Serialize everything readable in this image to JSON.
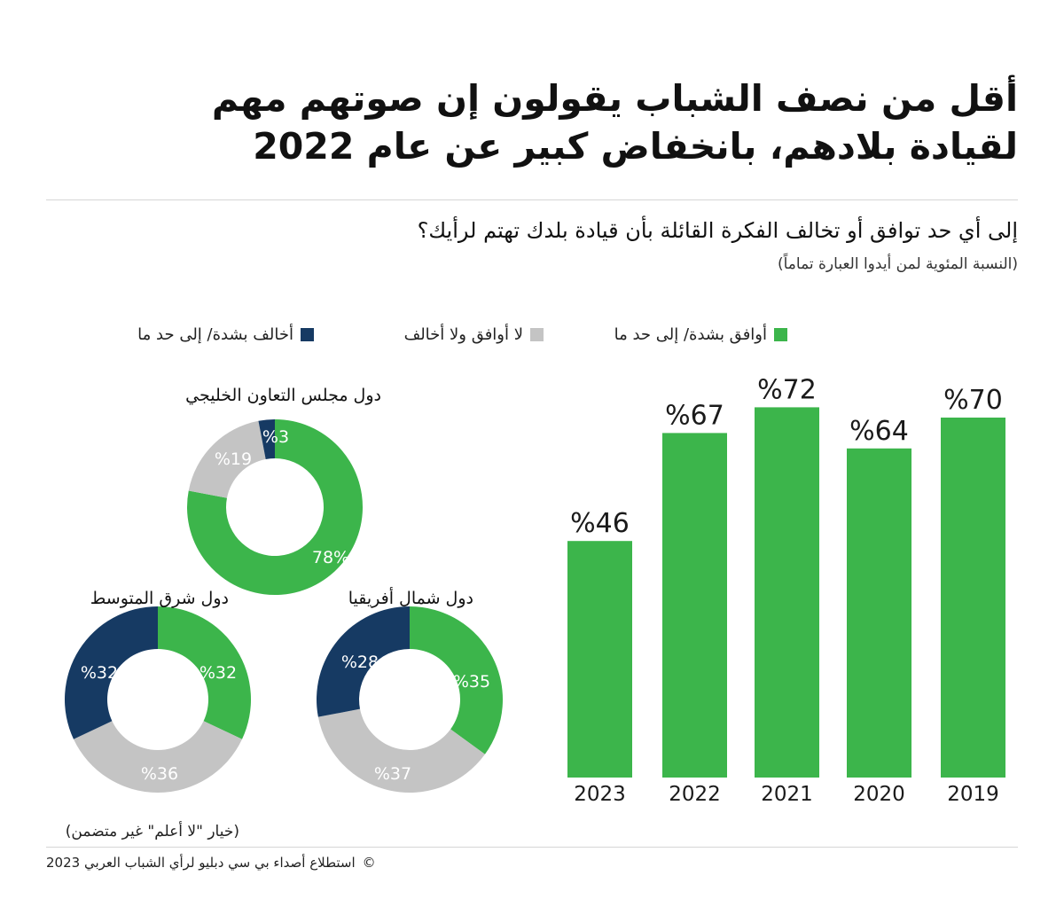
{
  "header": {
    "title_line1": "أقل من نصف الشباب يقولون إن صوتهم مهم",
    "title_line2": "لقيادة بلادهم، بانخفاض كبير عن عام 2022",
    "question": "إلى أي حد توافق أو تخالف الفكرة القائلة بأن قيادة بلدك تهتم لرأيك؟",
    "note": "(النسبة المئوية لمن أيدوا العبارة تماماً)"
  },
  "legend": [
    {
      "label": "أوافق بشدة/ إلى حد ما",
      "color": "#3cb54b"
    },
    {
      "label": "لا أوافق ولا أخالف",
      "color": "#c4c4c4"
    },
    {
      "label": "أخالف بشدة/ إلى حد ما",
      "color": "#163a63"
    }
  ],
  "chart_data": [
    {
      "type": "bar",
      "categories": [
        "2023",
        "2022",
        "2021",
        "2020",
        "2019"
      ],
      "values": [
        46,
        67,
        72,
        64,
        70
      ],
      "value_labels": [
        "%46",
        "%67",
        "%72",
        "%64",
        "%70"
      ],
      "ylim": [
        0,
        100
      ],
      "color": "#3cb54b"
    },
    {
      "type": "pie",
      "title": "دول مجلس التعاون الخليجي",
      "slices": [
        {
          "name": "أوافق بشدة/ إلى حد ما",
          "value": 78,
          "label": "78%",
          "color": "#3cb54b"
        },
        {
          "name": "لا أوافق ولا أخالف",
          "value": 19,
          "label": "%19",
          "color": "#c4c4c4"
        },
        {
          "name": "أخالف بشدة/ إلى حد ما",
          "value": 3,
          "label": "%3",
          "color": "#163a63"
        }
      ]
    },
    {
      "type": "pie",
      "title": "دول شمال أفريقيا",
      "slices": [
        {
          "name": "أوافق بشدة/ إلى حد ما",
          "value": 35,
          "label": "%35",
          "color": "#3cb54b"
        },
        {
          "name": "لا أوافق ولا أخالف",
          "value": 37,
          "label": "%37",
          "color": "#c4c4c4"
        },
        {
          "name": "أخالف بشدة/ إلى حد ما",
          "value": 28,
          "label": "%28",
          "color": "#163a63"
        }
      ]
    },
    {
      "type": "pie",
      "title": "دول شرق المتوسط",
      "slices": [
        {
          "name": "أوافق بشدة/ إلى حد ما",
          "value": 32,
          "label": "%32",
          "color": "#3cb54b"
        },
        {
          "name": "لا أوافق ولا أخالف",
          "value": 36,
          "label": "%36",
          "color": "#c4c4c4"
        },
        {
          "name": "أخالف بشدة/ إلى حد ما",
          "value": 32,
          "label": "%32",
          "color": "#163a63"
        }
      ]
    }
  ],
  "footnote": "(خيار \"لا أعلم\" غير متضمن)",
  "source": {
    "copyright": "©",
    "text": "استطلاع أصداء بي سي دبليو لرأي الشباب العربي 2023"
  }
}
